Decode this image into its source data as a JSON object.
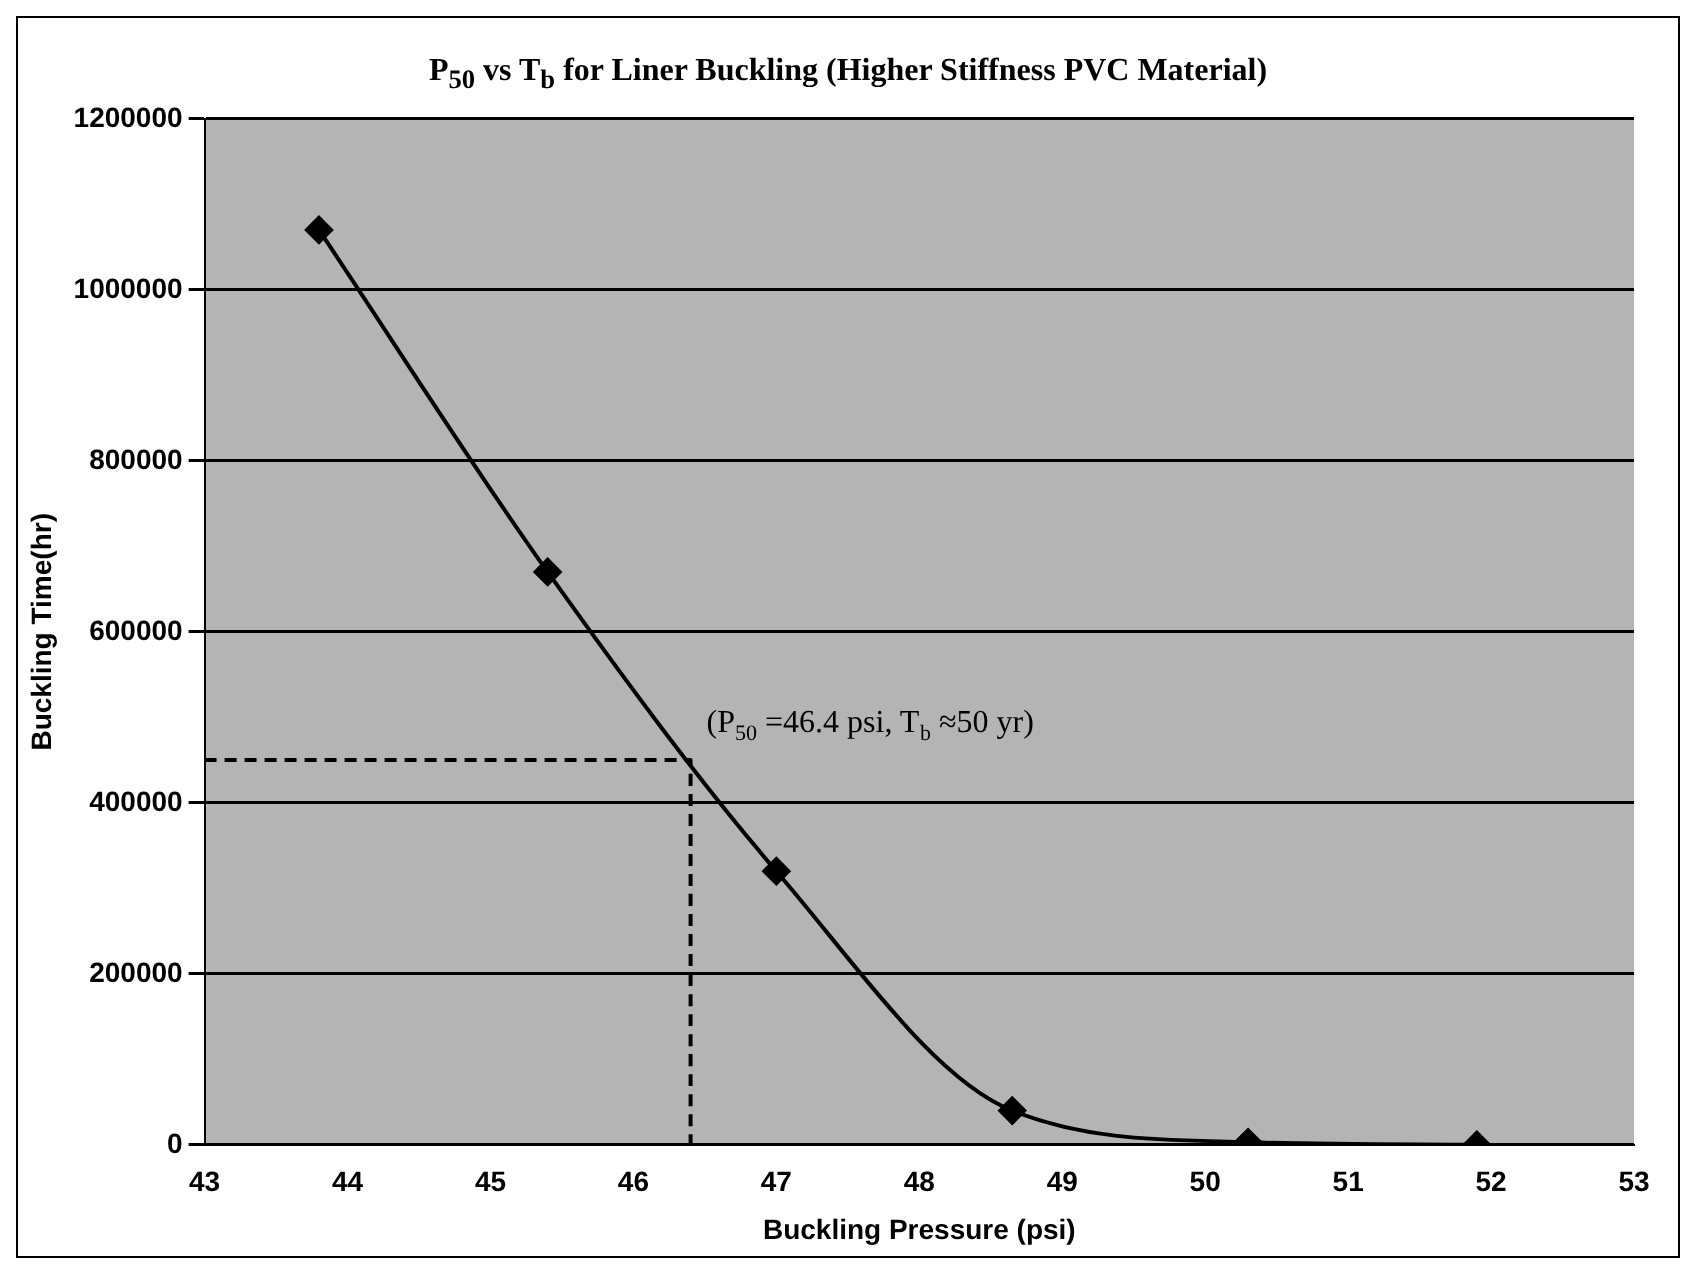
{
  "chart_data": {
    "type": "line",
    "title": "P$_{50}$ vs T$_{b}$ for Liner Buckling (Higher Stiffness PVC Material)",
    "xlabel": "Buckling Pressure (psi)",
    "ylabel": "Buckling Time(hr)",
    "series": [
      {
        "x": [
          43.8,
          45.4,
          47.0,
          48.65,
          50.3,
          51.9
        ],
        "values": [
          1070000,
          670000,
          320000,
          40000,
          3000,
          0
        ],
        "color": "#000000",
        "marker": "diamond",
        "line_style": "solid"
      },
      {
        "type": "line",
        "x": [
          43,
          46.4,
          46.4
        ],
        "values": [
          450000,
          450000,
          0
        ],
        "color": "#000000",
        "marker": "none",
        "line_style": "dashed"
      }
    ],
    "annotations": [
      {
        "text": "(P$_{50}$ =46.4 psi, T$_{b}$ ≈50 yr)",
        "x": 46.4,
        "y": 450000
      }
    ],
    "xlim": [
      43,
      53
    ],
    "xticks": [
      43,
      44,
      45,
      46,
      47,
      48,
      49,
      50,
      51,
      52,
      53
    ],
    "ylim": [
      0,
      1200000
    ],
    "yticks": [
      0,
      200000,
      400000,
      600000,
      800000,
      1000000,
      1200000
    ],
    "grid": "y",
    "legend": false
  }
}
